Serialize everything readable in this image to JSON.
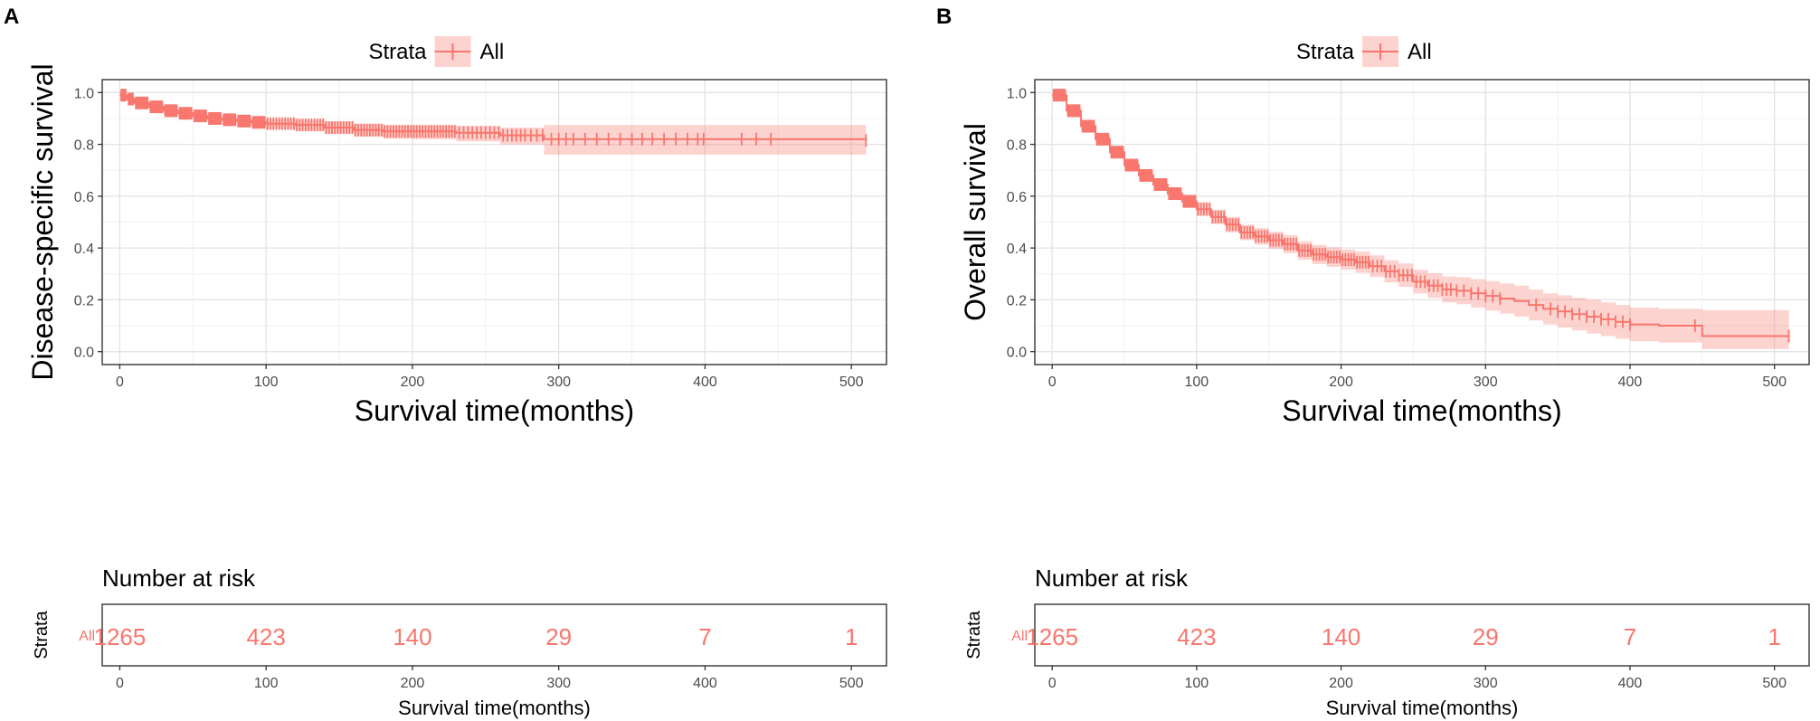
{
  "figure": {
    "legend_title": "Strata",
    "legend_label": "All",
    "risk_title": "Number at risk",
    "risk_strata_axis_label": "Strata",
    "risk_strata_label": "All"
  },
  "colors": {
    "line": "#F8766D",
    "band": "#F8766D",
    "band_opacity": 0.32,
    "grid_major": "#E3E3E3",
    "grid_minor": "#F0F0F0",
    "axis_text": "#4D4D4D"
  },
  "chart_data": [
    {
      "panel_label": "A",
      "type": "line",
      "title": "",
      "xlabel": "Survival time(months)",
      "ylabel": "Disease-specific survival",
      "xlim": [
        -12,
        524
      ],
      "ylim": [
        -0.05,
        1.05
      ],
      "xticks": [
        "0",
        "100",
        "200",
        "300",
        "400",
        "500"
      ],
      "yticks": [
        "0.0",
        "0.2",
        "0.4",
        "0.6",
        "0.8",
        "1.0"
      ],
      "grid": true,
      "legend": "top-center",
      "series": [
        {
          "name": "All",
          "x": [
            0,
            5,
            10,
            20,
            30,
            40,
            50,
            60,
            70,
            80,
            90,
            100,
            120,
            140,
            160,
            180,
            200,
            230,
            260,
            290,
            400,
            510
          ],
          "y": [
            0.99,
            0.975,
            0.96,
            0.945,
            0.93,
            0.92,
            0.91,
            0.9,
            0.895,
            0.89,
            0.885,
            0.88,
            0.875,
            0.865,
            0.855,
            0.85,
            0.85,
            0.845,
            0.835,
            0.82,
            0.82,
            0.815
          ],
          "lower": [
            0.98,
            0.965,
            0.95,
            0.93,
            0.915,
            0.905,
            0.895,
            0.885,
            0.878,
            0.872,
            0.866,
            0.86,
            0.852,
            0.84,
            0.83,
            0.822,
            0.82,
            0.812,
            0.8,
            0.76,
            0.76,
            0.76
          ],
          "upper": [
            1.0,
            0.985,
            0.97,
            0.958,
            0.945,
            0.935,
            0.925,
            0.915,
            0.91,
            0.905,
            0.9,
            0.897,
            0.895,
            0.888,
            0.88,
            0.875,
            0.875,
            0.872,
            0.865,
            0.875,
            0.875,
            0.875
          ],
          "censor_marks_x": [
            1,
            2,
            3,
            4,
            6,
            7,
            8,
            9,
            11,
            12,
            13,
            14,
            15,
            16,
            17,
            18,
            19,
            21,
            22,
            23,
            24,
            25,
            26,
            27,
            28,
            29,
            31,
            32,
            33,
            34,
            35,
            36,
            37,
            38,
            39,
            41,
            42,
            43,
            44,
            45,
            46,
            47,
            48,
            49,
            51,
            52,
            53,
            54,
            55,
            56,
            57,
            58,
            59,
            61,
            62,
            63,
            64,
            65,
            66,
            67,
            68,
            69,
            71,
            72,
            73,
            74,
            75,
            76,
            77,
            78,
            79,
            81,
            82,
            83,
            84,
            85,
            86,
            87,
            88,
            89,
            91,
            92,
            93,
            94,
            95,
            96,
            97,
            98,
            99,
            101,
            103,
            105,
            107,
            109,
            111,
            113,
            115,
            117,
            119,
            121,
            123,
            125,
            127,
            129,
            131,
            133,
            135,
            137,
            139,
            141,
            143,
            145,
            147,
            149,
            151,
            153,
            155,
            157,
            159,
            161,
            163,
            165,
            167,
            169,
            171,
            173,
            175,
            177,
            179,
            181,
            183,
            185,
            187,
            189,
            191,
            193,
            195,
            197,
            199,
            201,
            203,
            205,
            207,
            209,
            211,
            213,
            215,
            217,
            219,
            221,
            223,
            225,
            227,
            229,
            232,
            235,
            238,
            241,
            244,
            247,
            250,
            253,
            256,
            259,
            262,
            265,
            268,
            271,
            274,
            277,
            281,
            285,
            289,
            295,
            300,
            305,
            310,
            318,
            326,
            334,
            342,
            350,
            357,
            364,
            372,
            380,
            388,
            395,
            399,
            425,
            435,
            445,
            510
          ]
        }
      ],
      "risk_table": {
        "times": [
          "0",
          "100",
          "200",
          "300",
          "400",
          "500"
        ],
        "counts": [
          "1265",
          "423",
          "140",
          "29",
          "7",
          "1"
        ]
      }
    },
    {
      "panel_label": "B",
      "type": "line",
      "title": "",
      "xlabel": "Survival time(months)",
      "ylabel": "Overall survival",
      "xlim": [
        -12,
        524
      ],
      "ylim": [
        -0.05,
        1.05
      ],
      "xticks": [
        "0",
        "100",
        "200",
        "300",
        "400",
        "500"
      ],
      "yticks": [
        "0.0",
        "0.2",
        "0.4",
        "0.6",
        "0.8",
        "1.0"
      ],
      "grid": true,
      "legend": "top-center",
      "series": [
        {
          "name": "All",
          "x": [
            0,
            10,
            20,
            30,
            40,
            50,
            60,
            70,
            80,
            90,
            100,
            110,
            120,
            130,
            140,
            150,
            160,
            170,
            180,
            190,
            200,
            210,
            220,
            230,
            240,
            250,
            260,
            270,
            280,
            290,
            300,
            310,
            320,
            330,
            340,
            350,
            360,
            370,
            380,
            390,
            400,
            420,
            440,
            450,
            510
          ],
          "y": [
            0.99,
            0.93,
            0.87,
            0.82,
            0.77,
            0.72,
            0.68,
            0.645,
            0.61,
            0.58,
            0.55,
            0.52,
            0.49,
            0.46,
            0.445,
            0.43,
            0.415,
            0.39,
            0.375,
            0.365,
            0.355,
            0.345,
            0.33,
            0.31,
            0.295,
            0.27,
            0.255,
            0.24,
            0.235,
            0.225,
            0.215,
            0.205,
            0.195,
            0.18,
            0.165,
            0.155,
            0.145,
            0.135,
            0.125,
            0.115,
            0.105,
            0.1,
            0.1,
            0.06,
            0.06
          ],
          "lower": [
            0.98,
            0.915,
            0.855,
            0.805,
            0.752,
            0.7,
            0.66,
            0.622,
            0.586,
            0.555,
            0.523,
            0.492,
            0.46,
            0.43,
            0.413,
            0.397,
            0.38,
            0.354,
            0.338,
            0.327,
            0.316,
            0.304,
            0.288,
            0.267,
            0.25,
            0.224,
            0.207,
            0.19,
            0.183,
            0.17,
            0.158,
            0.147,
            0.135,
            0.12,
            0.105,
            0.093,
            0.082,
            0.07,
            0.06,
            0.05,
            0.04,
            0.035,
            0.035,
            0.01,
            0.01
          ],
          "upper": [
            1.0,
            0.945,
            0.885,
            0.835,
            0.788,
            0.74,
            0.7,
            0.668,
            0.634,
            0.605,
            0.577,
            0.548,
            0.52,
            0.49,
            0.477,
            0.463,
            0.45,
            0.426,
            0.412,
            0.403,
            0.394,
            0.386,
            0.372,
            0.353,
            0.34,
            0.316,
            0.303,
            0.29,
            0.287,
            0.28,
            0.272,
            0.263,
            0.255,
            0.24,
            0.225,
            0.217,
            0.208,
            0.2,
            0.19,
            0.18,
            0.17,
            0.165,
            0.165,
            0.16,
            0.16
          ],
          "censor_marks_x": [
            1,
            2,
            3,
            4,
            5,
            6,
            7,
            8,
            9,
            11,
            12,
            13,
            14,
            15,
            16,
            17,
            18,
            19,
            21,
            22,
            23,
            24,
            25,
            26,
            27,
            28,
            29,
            31,
            32,
            33,
            34,
            35,
            36,
            37,
            38,
            39,
            41,
            42,
            43,
            44,
            45,
            46,
            47,
            48,
            49,
            51,
            52,
            53,
            54,
            55,
            56,
            57,
            58,
            59,
            61,
            62,
            63,
            64,
            65,
            66,
            67,
            68,
            69,
            71,
            72,
            73,
            74,
            75,
            76,
            77,
            78,
            79,
            81,
            82,
            83,
            84,
            85,
            86,
            87,
            88,
            89,
            91,
            92,
            93,
            94,
            95,
            96,
            97,
            98,
            99,
            101,
            103,
            105,
            107,
            109,
            111,
            113,
            115,
            117,
            119,
            121,
            123,
            125,
            127,
            129,
            131,
            133,
            135,
            137,
            139,
            141,
            143,
            145,
            147,
            149,
            151,
            153,
            155,
            157,
            159,
            161,
            163,
            165,
            167,
            169,
            171,
            173,
            175,
            177,
            179,
            181,
            183,
            185,
            187,
            189,
            191,
            193,
            195,
            197,
            199,
            201,
            203,
            205,
            207,
            209,
            211,
            213,
            215,
            217,
            219,
            222,
            225,
            228,
            231,
            234,
            237,
            240,
            243,
            246,
            249,
            252,
            255,
            258,
            261,
            264,
            267,
            270,
            273,
            276,
            280,
            285,
            290,
            295,
            300,
            305,
            310,
            335,
            345,
            350,
            355,
            360,
            365,
            370,
            375,
            380,
            385,
            390,
            395,
            400,
            445,
            510
          ]
        }
      ],
      "risk_table": {
        "times": [
          "0",
          "100",
          "200",
          "300",
          "400",
          "500"
        ],
        "counts": [
          "1265",
          "423",
          "140",
          "29",
          "7",
          "1"
        ]
      }
    }
  ]
}
